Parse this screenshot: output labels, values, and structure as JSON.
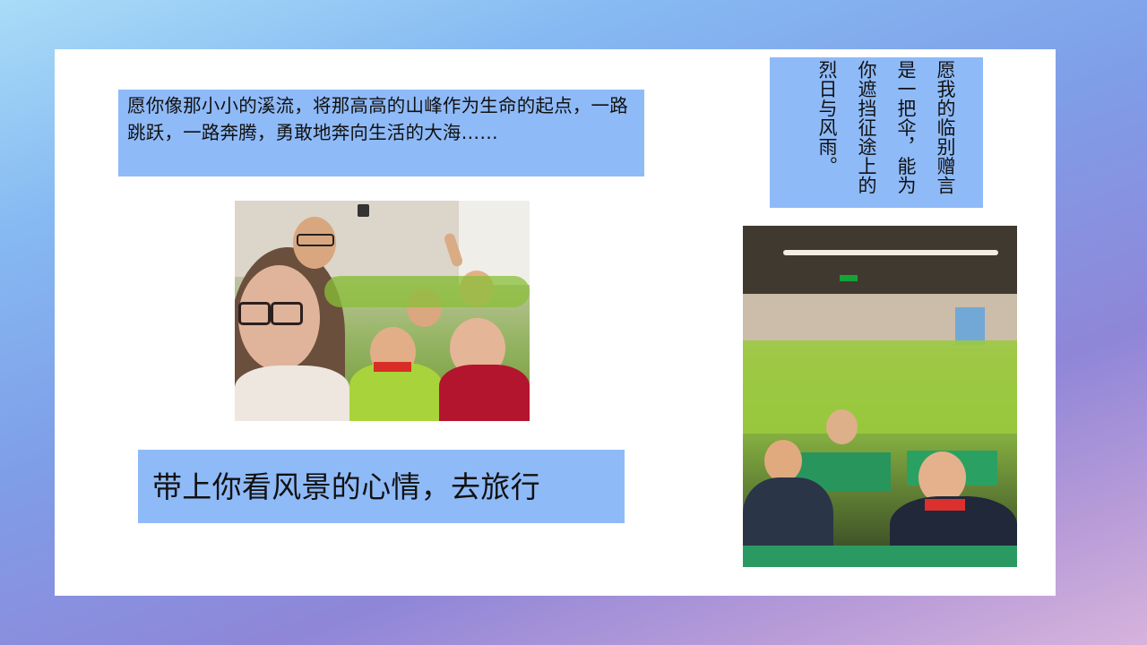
{
  "slide": {
    "quote": "愿你像那小小的溪流，将那高高的山峰作为生命的起点，一路跳跃，一路奔腾，勇敢地奔向生活的大海……",
    "caption": "带上你看风景的心情，去旅行",
    "vertical_text": "愿我的临别赠言是一把伞，能为你遮挡征途上的烈日与风雨。"
  },
  "colors": {
    "text_box_background": "#8fbaf8",
    "panel_background": "#ffffff",
    "text": "#111111"
  }
}
